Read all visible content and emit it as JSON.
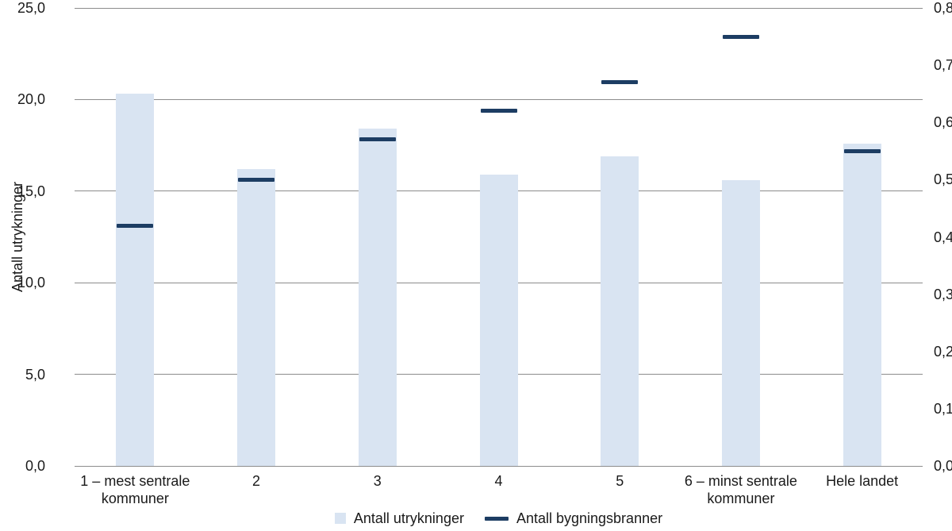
{
  "chart_data": {
    "type": "bar",
    "title": "",
    "categories": [
      "1 – mest sentrale kommuner",
      "2",
      "3",
      "4",
      "5",
      "6 – minst sentrale kommuner",
      "Hele landet"
    ],
    "category_display": [
      "1 – mest sentrale\nkommuner",
      "2",
      "3",
      "4",
      "5",
      "6 – minst sentrale\nkommuner",
      "Hele landet"
    ],
    "series": [
      {
        "name": "Antall utrykninger",
        "mark": "bar",
        "axis": "left",
        "color": "#d9e4f2",
        "values": [
          20.3,
          16.2,
          18.4,
          15.9,
          16.9,
          15.6,
          17.6
        ]
      },
      {
        "name": "Antall bygningsbranner",
        "mark": "dash",
        "axis": "right",
        "color": "#1d3d63",
        "values": [
          0.42,
          0.5,
          0.57,
          0.62,
          0.67,
          0.75,
          0.55
        ]
      }
    ],
    "left_axis": {
      "label": "Antall utrykninger",
      "min": 0,
      "max": 25,
      "step": 5,
      "ticks": [
        "0,0",
        "5,0",
        "10,0",
        "15,0",
        "20,0",
        "25,0"
      ]
    },
    "right_axis": {
      "label": "",
      "min": 0,
      "max": 0.8,
      "step": 0.1,
      "ticks": [
        "0,0",
        "0,1",
        "0,2",
        "0,3",
        "0,4",
        "0,5",
        "0,6",
        "0,7",
        "0,8"
      ]
    },
    "legend": {
      "position": "bottom",
      "items": [
        "Antall utrykninger",
        "Antall bygningsbranner"
      ]
    },
    "grid": "horizontal",
    "colors": {
      "gridline": "#8c8c8c",
      "text": "#1a1a1a",
      "background": "#ffffff",
      "bar": "#d9e4f2",
      "dash": "#1d3d63"
    }
  }
}
